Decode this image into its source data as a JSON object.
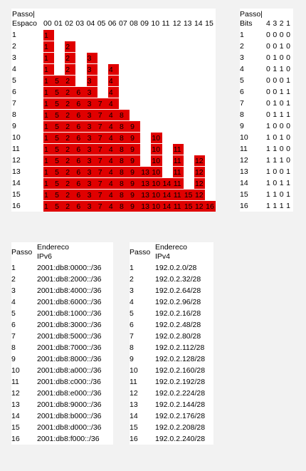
{
  "allocation": {
    "corner_header": [
      "Passo|",
      "Espaco"
    ],
    "columns": [
      "00",
      "01",
      "02",
      "03",
      "04",
      "05",
      "06",
      "07",
      "08",
      "09",
      "10",
      "11",
      "12",
      "13",
      "14",
      "15"
    ],
    "rows": [
      {
        "step": "1",
        "cells": [
          "1",
          "",
          "",
          "",
          "",
          "",
          "",
          "",
          "",
          "",
          "",
          "",
          "",
          "",
          "",
          ""
        ]
      },
      {
        "step": "2",
        "cells": [
          "1",
          "",
          "2",
          "",
          "",
          "",
          "",
          "",
          "",
          "",
          "",
          "",
          "",
          "",
          "",
          ""
        ]
      },
      {
        "step": "3",
        "cells": [
          "1",
          "",
          "2",
          "",
          "3",
          "",
          "",
          "",
          "",
          "",
          "",
          "",
          "",
          "",
          "",
          ""
        ]
      },
      {
        "step": "4",
        "cells": [
          "1",
          "",
          "2",
          "",
          "3",
          "",
          "4",
          "",
          "",
          "",
          "",
          "",
          "",
          "",
          "",
          ""
        ]
      },
      {
        "step": "5",
        "cells": [
          "1",
          "5",
          "2",
          "",
          "3",
          "",
          "4",
          "",
          "",
          "",
          "",
          "",
          "",
          "",
          "",
          ""
        ]
      },
      {
        "step": "6",
        "cells": [
          "1",
          "5",
          "2",
          "6",
          "3",
          "",
          "4",
          "",
          "",
          "",
          "",
          "",
          "",
          "",
          "",
          ""
        ]
      },
      {
        "step": "7",
        "cells": [
          "1",
          "5",
          "2",
          "6",
          "3",
          "7",
          "4",
          "",
          "",
          "",
          "",
          "",
          "",
          "",
          "",
          ""
        ]
      },
      {
        "step": "8",
        "cells": [
          "1",
          "5",
          "2",
          "6",
          "3",
          "7",
          "4",
          "8",
          "",
          "",
          "",
          "",
          "",
          "",
          "",
          ""
        ]
      },
      {
        "step": "9",
        "cells": [
          "1",
          "5",
          "2",
          "6",
          "3",
          "7",
          "4",
          "8",
          "9",
          "",
          "",
          "",
          "",
          "",
          "",
          ""
        ]
      },
      {
        "step": "10",
        "cells": [
          "1",
          "5",
          "2",
          "6",
          "3",
          "7",
          "4",
          "8",
          "9",
          "",
          "10",
          "",
          "",
          "",
          "",
          ""
        ]
      },
      {
        "step": "11",
        "cells": [
          "1",
          "5",
          "2",
          "6",
          "3",
          "7",
          "4",
          "8",
          "9",
          "",
          "10",
          "",
          "11",
          "",
          "",
          ""
        ]
      },
      {
        "step": "12",
        "cells": [
          "1",
          "5",
          "2",
          "6",
          "3",
          "7",
          "4",
          "8",
          "9",
          "",
          "10",
          "",
          "11",
          "",
          "12",
          ""
        ]
      },
      {
        "step": "13",
        "cells": [
          "1",
          "5",
          "2",
          "6",
          "3",
          "7",
          "4",
          "8",
          "9",
          "13",
          "10",
          "",
          "11",
          "",
          "12",
          ""
        ]
      },
      {
        "step": "14",
        "cells": [
          "1",
          "5",
          "2",
          "6",
          "3",
          "7",
          "4",
          "8",
          "9",
          "13",
          "10",
          "14",
          "11",
          "",
          "12",
          ""
        ]
      },
      {
        "step": "15",
        "cells": [
          "1",
          "5",
          "2",
          "6",
          "3",
          "7",
          "4",
          "8",
          "9",
          "13",
          "10",
          "14",
          "11",
          "15",
          "12",
          ""
        ]
      },
      {
        "step": "16",
        "cells": [
          "1",
          "5",
          "2",
          "6",
          "3",
          "7",
          "4",
          "8",
          "9",
          "13",
          "10",
          "14",
          "11",
          "15",
          "12",
          "16"
        ]
      }
    ],
    "fill_color": "#e00000"
  },
  "bits": {
    "corner_header": [
      "Passo|",
      "Bits"
    ],
    "columns": [
      "4",
      "3",
      "2",
      "1"
    ],
    "rows": [
      {
        "step": "1",
        "bits": [
          "0",
          "0",
          "0",
          "0"
        ]
      },
      {
        "step": "2",
        "bits": [
          "0",
          "0",
          "1",
          "0"
        ]
      },
      {
        "step": "3",
        "bits": [
          "0",
          "1",
          "0",
          "0"
        ]
      },
      {
        "step": "4",
        "bits": [
          "0",
          "1",
          "1",
          "0"
        ]
      },
      {
        "step": "5",
        "bits": [
          "0",
          "0",
          "0",
          "1"
        ]
      },
      {
        "step": "6",
        "bits": [
          "0",
          "0",
          "1",
          "1"
        ]
      },
      {
        "step": "7",
        "bits": [
          "0",
          "1",
          "0",
          "1"
        ]
      },
      {
        "step": "8",
        "bits": [
          "0",
          "1",
          "1",
          "1"
        ]
      },
      {
        "step": "9",
        "bits": [
          "1",
          "0",
          "0",
          "0"
        ]
      },
      {
        "step": "10",
        "bits": [
          "1",
          "0",
          "1",
          "0"
        ]
      },
      {
        "step": "11",
        "bits": [
          "1",
          "1",
          "0",
          "0"
        ]
      },
      {
        "step": "12",
        "bits": [
          "1",
          "1",
          "1",
          "0"
        ]
      },
      {
        "step": "13",
        "bits": [
          "1",
          "0",
          "0",
          "1"
        ]
      },
      {
        "step": "14",
        "bits": [
          "1",
          "0",
          "1",
          "1"
        ]
      },
      {
        "step": "15",
        "bits": [
          "1",
          "1",
          "0",
          "1"
        ]
      },
      {
        "step": "16",
        "bits": [
          "1",
          "1",
          "1",
          "1"
        ]
      }
    ]
  },
  "ipv6": {
    "header_step": "Passo",
    "header_addr": [
      "Endereco",
      "IPv6"
    ],
    "rows": [
      {
        "step": "1",
        "addr": "2001:db8:0000::/36"
      },
      {
        "step": "2",
        "addr": "2001:db8:2000::/36"
      },
      {
        "step": "3",
        "addr": "2001:db8:4000::/36"
      },
      {
        "step": "4",
        "addr": "2001:db8:6000::/36"
      },
      {
        "step": "5",
        "addr": "2001:db8:1000::/36"
      },
      {
        "step": "6",
        "addr": "2001:db8:3000::/36"
      },
      {
        "step": "7",
        "addr": "2001:db8:5000::/36"
      },
      {
        "step": "8",
        "addr": "2001:db8:7000::/36"
      },
      {
        "step": "9",
        "addr": "2001:db8:8000::/36"
      },
      {
        "step": "10",
        "addr": "2001:db8:a000::/36"
      },
      {
        "step": "11",
        "addr": "2001:db8:c000::/36"
      },
      {
        "step": "12",
        "addr": "2001:db8:e000::/36"
      },
      {
        "step": "13",
        "addr": "2001:db8:9000::/36"
      },
      {
        "step": "14",
        "addr": "2001:db8:b000::/36"
      },
      {
        "step": "15",
        "addr": "2001:db8:d000::/36"
      },
      {
        "step": "16",
        "addr": "2001:db8:f000::/36"
      }
    ]
  },
  "ipv4": {
    "header_step": "Passo",
    "header_addr": [
      "Endereco",
      "IPv4"
    ],
    "rows": [
      {
        "step": "1",
        "addr": "192.0.2.0/28"
      },
      {
        "step": "2",
        "addr": "192.0.2.32/28"
      },
      {
        "step": "3",
        "addr": "192.0.2.64/28"
      },
      {
        "step": "4",
        "addr": "192.0.2.96/28"
      },
      {
        "step": "5",
        "addr": "192.0.2.16/28"
      },
      {
        "step": "6",
        "addr": "192.0.2.48/28"
      },
      {
        "step": "7",
        "addr": "192.0.2.80/28"
      },
      {
        "step": "8",
        "addr": "192.0.2.112/28"
      },
      {
        "step": "9",
        "addr": "192.0.2.128/28"
      },
      {
        "step": "10",
        "addr": "192.0.2.160/28"
      },
      {
        "step": "11",
        "addr": "192.0.2.192/28"
      },
      {
        "step": "12",
        "addr": "192.0.2.224/28"
      },
      {
        "step": "13",
        "addr": "192.0.2.144/28"
      },
      {
        "step": "14",
        "addr": "192.0.2.176/28"
      },
      {
        "step": "15",
        "addr": "192.0.2.208/28"
      },
      {
        "step": "16",
        "addr": "192.0.2.240/28"
      }
    ]
  }
}
